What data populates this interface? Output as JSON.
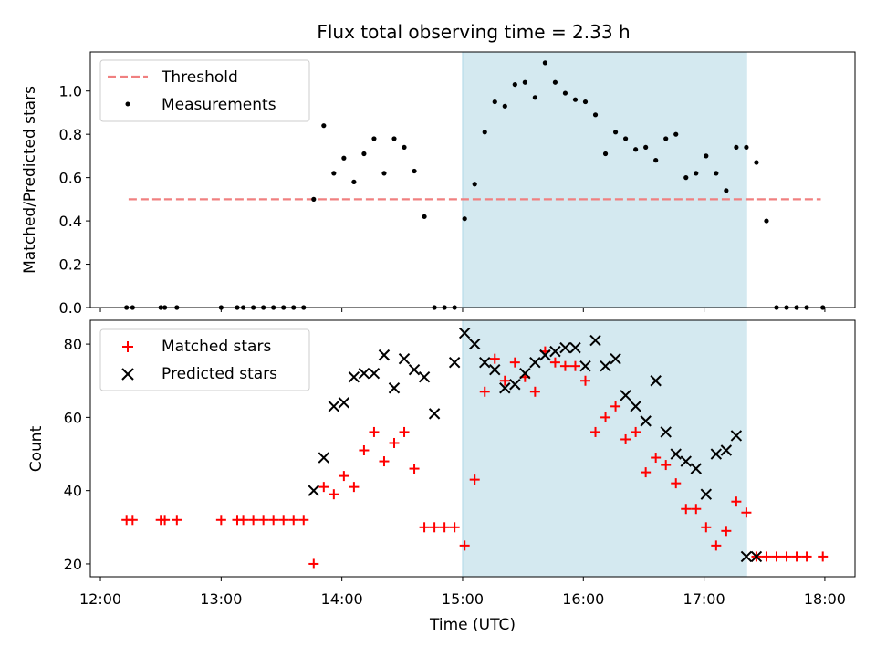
{
  "chart_data": [
    {
      "type": "scatter",
      "title": "Flux total observing time = 2.33 h",
      "xlabel": "",
      "ylabel": "Matched/Predicted stars",
      "xlim": [
        "11:55",
        "18:15"
      ],
      "ylim": [
        0,
        1.18
      ],
      "yticks": [
        "0.0",
        "0.2",
        "0.4",
        "0.6",
        "0.8",
        "1.0"
      ],
      "xticks_labels_shown": false,
      "grid": false,
      "legend_placement": "top-left",
      "highlight_span": {
        "start": "15:00",
        "end": "17:21",
        "color": "#d4e9f0"
      },
      "threshold": {
        "name": "Threshold",
        "value": 0.5,
        "x_start": "12:14",
        "x_end": "17:58",
        "color": "#f08080",
        "style": "dashed"
      },
      "series": [
        {
          "name": "Measurements",
          "color": "#000000",
          "marker": "dot",
          "x": [
            "12:13",
            "12:16",
            "12:30",
            "12:32",
            "12:38",
            "13:00",
            "13:08",
            "13:11",
            "13:16",
            "13:21",
            "13:26",
            "13:31",
            "13:36",
            "13:41",
            "13:46",
            "13:51",
            "13:56",
            "14:01",
            "14:06",
            "14:11",
            "14:16",
            "14:21",
            "14:26",
            "14:31",
            "14:36",
            "14:41",
            "14:46",
            "14:51",
            "14:56",
            "15:01",
            "15:06",
            "15:11",
            "15:16",
            "15:21",
            "15:26",
            "15:31",
            "15:36",
            "15:41",
            "15:46",
            "15:51",
            "15:56",
            "16:01",
            "16:06",
            "16:11",
            "16:16",
            "16:21",
            "16:26",
            "16:31",
            "16:36",
            "16:41",
            "16:46",
            "16:51",
            "16:56",
            "17:01",
            "17:06",
            "17:11",
            "17:16",
            "17:21",
            "17:26",
            "17:31",
            "17:36",
            "17:41",
            "17:46",
            "17:51",
            "17:59"
          ],
          "values": [
            0,
            0,
            0,
            0,
            0,
            0,
            0,
            0,
            0,
            0,
            0,
            0,
            0,
            0,
            0.5,
            0.84,
            0.62,
            0.69,
            0.58,
            0.71,
            0.78,
            0.62,
            0.78,
            0.74,
            0.63,
            0.42,
            0,
            0,
            0,
            0.41,
            0.57,
            0.81,
            0.95,
            0.93,
            1.03,
            1.04,
            0.97,
            1.13,
            1.04,
            0.99,
            0.96,
            0.95,
            0.89,
            0.71,
            0.81,
            0.78,
            0.73,
            0.74,
            0.68,
            0.78,
            0.8,
            0.6,
            0.62,
            0.7,
            0.62,
            0.54,
            0.74,
            0.74,
            0.67,
            0.4,
            0,
            0,
            0,
            0,
            0
          ]
        }
      ]
    },
    {
      "type": "scatter",
      "title": "",
      "xlabel": "Time (UTC)",
      "ylabel": "Count",
      "xlim": [
        "11:55",
        "18:15"
      ],
      "ylim": [
        16.5,
        86.5
      ],
      "yticks": [
        "20",
        "40",
        "60",
        "80"
      ],
      "xticks": [
        "12:00",
        "13:00",
        "14:00",
        "15:00",
        "16:00",
        "17:00",
        "18:00"
      ],
      "grid": false,
      "legend_placement": "top-left",
      "highlight_span": {
        "start": "15:00",
        "end": "17:21",
        "color": "#d4e9f0"
      },
      "series": [
        {
          "name": "Matched stars",
          "color": "#ff0000",
          "marker": "plus",
          "x": [
            "12:13",
            "12:16",
            "12:30",
            "12:32",
            "12:38",
            "13:00",
            "13:08",
            "13:11",
            "13:16",
            "13:21",
            "13:26",
            "13:31",
            "13:36",
            "13:41",
            "13:46",
            "13:51",
            "13:56",
            "14:01",
            "14:06",
            "14:11",
            "14:16",
            "14:21",
            "14:26",
            "14:31",
            "14:36",
            "14:41",
            "14:46",
            "14:51",
            "14:56",
            "15:01",
            "15:06",
            "15:11",
            "15:16",
            "15:21",
            "15:26",
            "15:31",
            "15:36",
            "15:41",
            "15:46",
            "15:51",
            "15:56",
            "16:01",
            "16:06",
            "16:11",
            "16:16",
            "16:21",
            "16:26",
            "16:31",
            "16:36",
            "16:41",
            "16:46",
            "16:51",
            "16:56",
            "17:01",
            "17:06",
            "17:11",
            "17:16",
            "17:21",
            "17:26",
            "17:31",
            "17:36",
            "17:41",
            "17:46",
            "17:51",
            "17:59"
          ],
          "values": [
            32,
            32,
            32,
            32,
            32,
            32,
            32,
            32,
            32,
            32,
            32,
            32,
            32,
            32,
            20,
            41,
            39,
            44,
            41,
            51,
            56,
            48,
            53,
            56,
            46,
            30,
            30,
            30,
            30,
            25,
            43,
            67,
            76,
            70,
            75,
            71,
            67,
            78,
            75,
            74,
            74,
            70,
            56,
            60,
            63,
            54,
            56,
            45,
            49,
            47,
            42,
            35,
            35,
            30,
            25,
            29,
            37,
            34,
            22,
            22,
            22,
            22,
            22,
            22,
            22
          ]
        },
        {
          "name": "Predicted stars",
          "color": "#000000",
          "marker": "cross",
          "x": [
            "13:46",
            "13:51",
            "13:56",
            "14:01",
            "14:06",
            "14:11",
            "14:16",
            "14:21",
            "14:26",
            "14:31",
            "14:36",
            "14:41",
            "14:46",
            "14:56",
            "15:01",
            "15:06",
            "15:11",
            "15:16",
            "15:21",
            "15:26",
            "15:31",
            "15:36",
            "15:41",
            "15:46",
            "15:51",
            "15:56",
            "16:01",
            "16:06",
            "16:11",
            "16:16",
            "16:21",
            "16:26",
            "16:31",
            "16:36",
            "16:41",
            "16:46",
            "16:51",
            "16:56",
            "17:01",
            "17:06",
            "17:11",
            "17:16",
            "17:21",
            "17:26"
          ],
          "values": [
            40,
            49,
            63,
            64,
            71,
            72,
            72,
            77,
            68,
            76,
            73,
            71,
            61,
            75,
            83,
            80,
            75,
            73,
            68,
            69,
            72,
            75,
            77,
            78,
            79,
            79,
            74,
            81,
            74,
            76,
            66,
            63,
            59,
            70,
            56,
            50,
            48,
            46,
            39,
            50,
            51,
            55,
            22,
            22
          ]
        }
      ]
    }
  ]
}
